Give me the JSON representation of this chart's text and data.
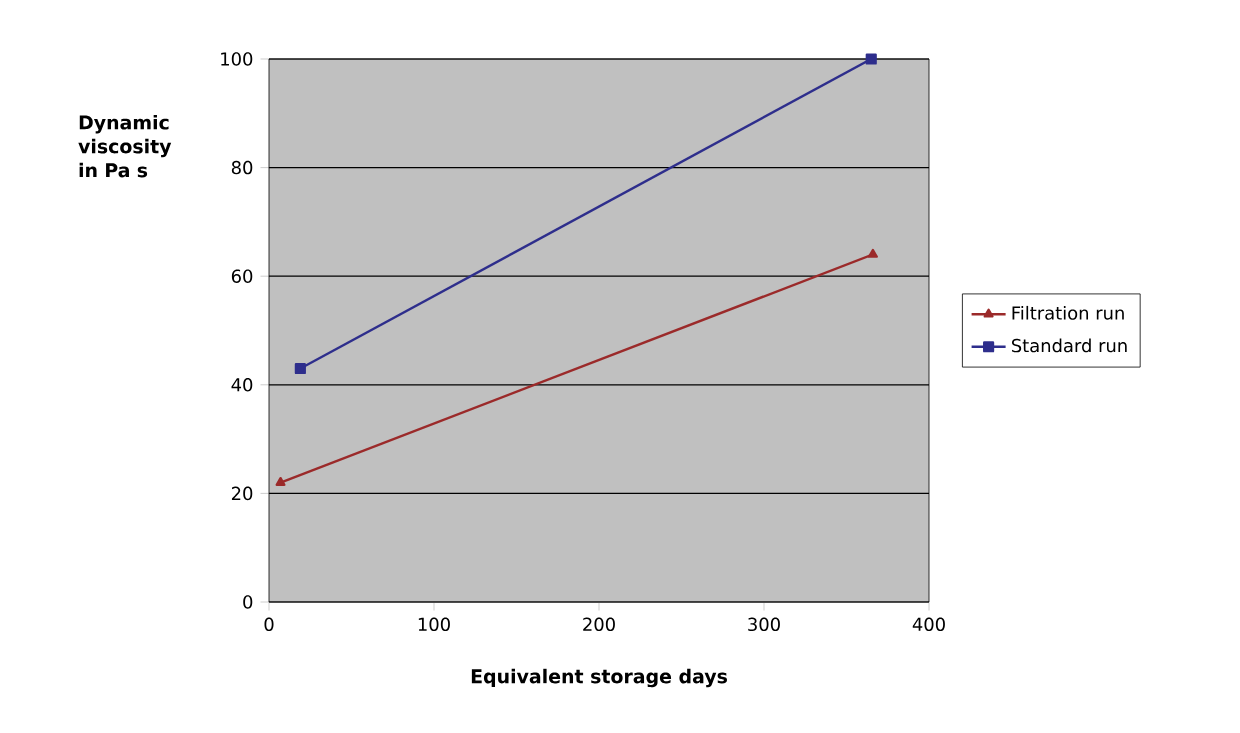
{
  "chart_data": {
    "type": "line",
    "xlabel": "Equivalent storage days",
    "ylabel": "Dynamic viscosity in Pa s",
    "xlim": [
      0,
      400
    ],
    "ylim": [
      0,
      100
    ],
    "xticks": [
      0,
      100,
      200,
      300,
      400
    ],
    "yticks": [
      0,
      20,
      40,
      60,
      80,
      100
    ],
    "grid": "y",
    "legend": "right",
    "line_style": "solid",
    "series": [
      {
        "name": "Filtration run",
        "color": "#9b2a2a",
        "marker": "triangle",
        "x": [
          7,
          366
        ],
        "values": [
          22,
          64
        ]
      },
      {
        "name": "Standard run",
        "color": "#2e2e8c",
        "marker": "square",
        "x": [
          19,
          365
        ],
        "values": [
          43,
          100
        ]
      }
    ]
  }
}
